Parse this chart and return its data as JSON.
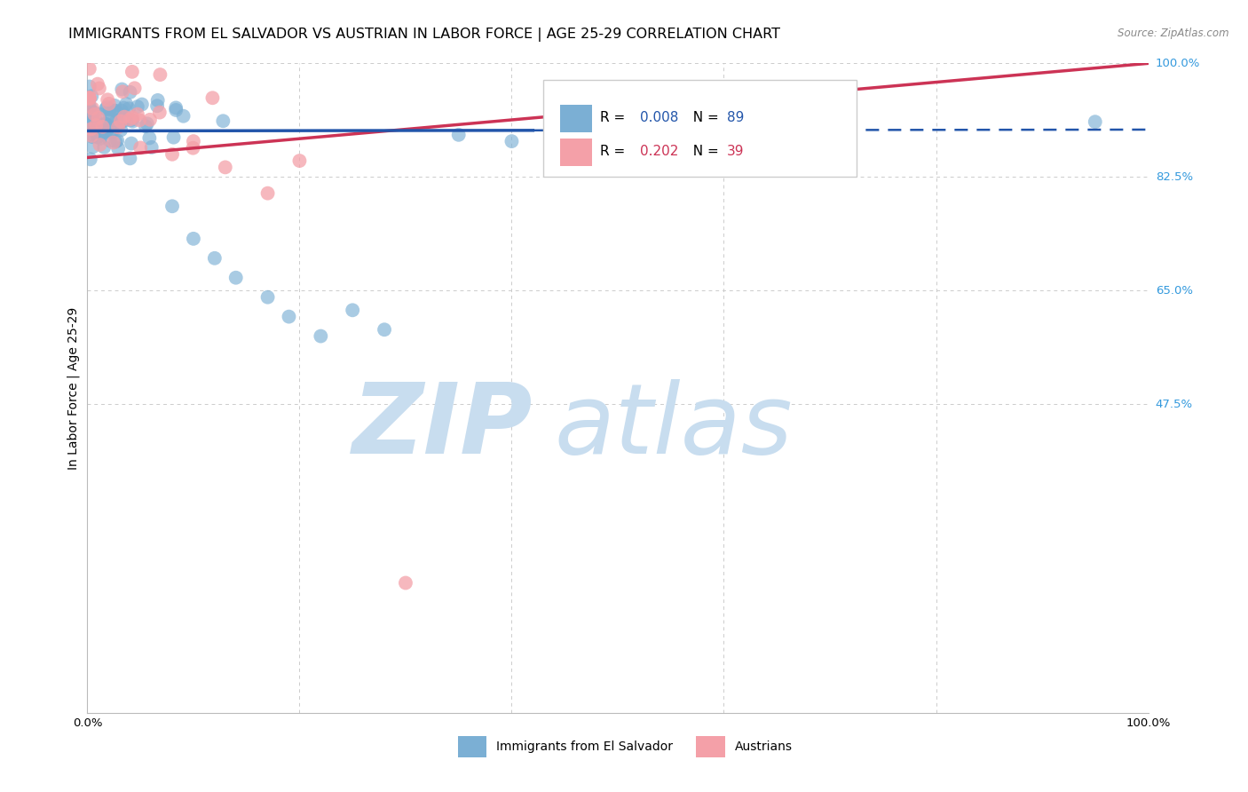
{
  "title": "IMMIGRANTS FROM EL SALVADOR VS AUSTRIAN IN LABOR FORCE | AGE 25-29 CORRELATION CHART",
  "source": "Source: ZipAtlas.com",
  "ylabel": "In Labor Force | Age 25-29",
  "xlim": [
    0.0,
    1.0
  ],
  "ylim": [
    0.0,
    1.0
  ],
  "blue_R": 0.008,
  "blue_N": 89,
  "pink_R": 0.202,
  "pink_N": 39,
  "blue_color": "#7BAFD4",
  "pink_color": "#F4A0A8",
  "trend_blue": "#2255AA",
  "trend_pink": "#CC3355",
  "legend_blue": "Immigrants from El Salvador",
  "legend_pink": "Austrians",
  "grid_color": "#CCCCCC",
  "background_color": "#FFFFFF",
  "title_fontsize": 11.5,
  "axis_label_fontsize": 10,
  "tick_fontsize": 9.5,
  "right_label_color": "#3399DD",
  "watermark_zip_color": "#C8DDEF",
  "watermark_atlas_color": "#C8DDEF",
  "blue_trend_intercept": 0.896,
  "blue_trend_slope": 0.002,
  "pink_trend_intercept": 0.855,
  "pink_trend_slope": 0.145
}
